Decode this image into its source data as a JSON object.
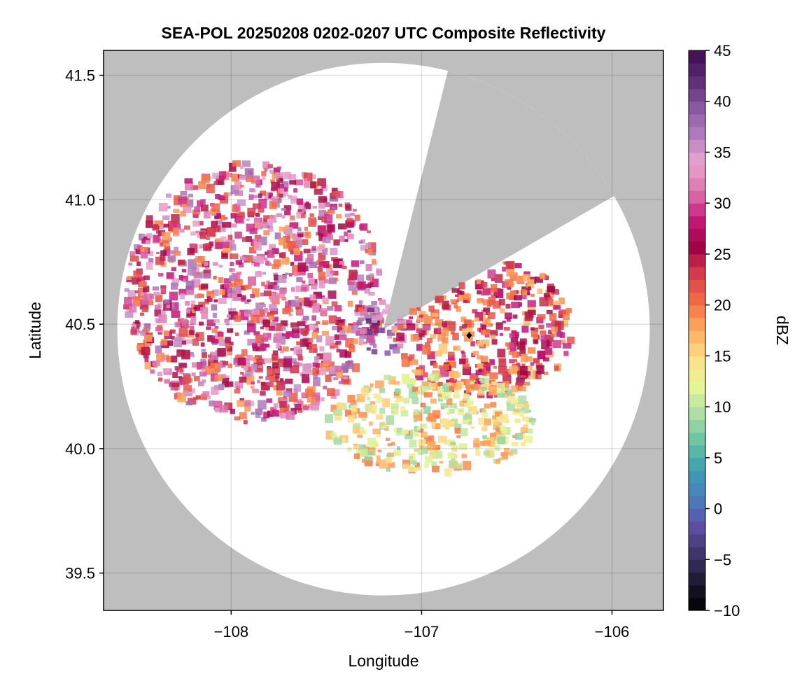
{
  "chart_data": {
    "type": "heatmap",
    "subtype": "radar-composite-reflectivity",
    "title": "SEA-POL 20250208 0202-0207 UTC Composite Reflectivity",
    "xlabel": "Longitude",
    "ylabel": "Latitude",
    "xlim": [
      -108.67,
      -105.73
    ],
    "ylim": [
      39.35,
      41.6
    ],
    "xticks": [
      -108,
      -107,
      -106
    ],
    "xtick_labels": [
      "−108",
      "−107",
      "−106"
    ],
    "yticks": [
      39.5,
      40.0,
      40.5,
      41.0,
      41.5
    ],
    "ytick_labels": [
      "39.5",
      "40.0",
      "40.5",
      "41.0",
      "41.5"
    ],
    "grid": true,
    "radar": {
      "center_lon": -107.2,
      "center_lat": 40.48,
      "range_lat_deg": 1.07,
      "blocked_sectors": [
        {
          "azimuth_from_deg": 14,
          "azimuth_to_deg": 60
        }
      ],
      "marker": {
        "lon": -106.75,
        "lat": 40.455,
        "shape": "diamond"
      }
    },
    "echo_regions": [
      {
        "name": "west-northwest band",
        "lon": [
          -108.55,
          -107.2
        ],
        "lat": [
          40.1,
          41.15
        ],
        "dbz_range": [
          18,
          38
        ]
      },
      {
        "name": "near-radar core",
        "lon": [
          -107.35,
          -107.05
        ],
        "lat": [
          40.38,
          40.58
        ],
        "dbz_range": [
          30,
          43
        ]
      },
      {
        "name": "east sector",
        "lon": [
          -107.15,
          -106.2
        ],
        "lat": [
          40.2,
          40.78
        ],
        "dbz_range": [
          16,
          30
        ]
      },
      {
        "name": "south weak echoes",
        "lon": [
          -107.5,
          -106.4
        ],
        "lat": [
          39.9,
          40.3
        ],
        "dbz_range": [
          8,
          20
        ]
      }
    ],
    "colorbar": {
      "label": "dBZ",
      "min": -10,
      "max": 45,
      "ticks": [
        -10,
        -5,
        0,
        5,
        10,
        15,
        20,
        25,
        30,
        35,
        40,
        45
      ],
      "tick_labels": [
        "−10",
        "−5",
        "0",
        "5",
        "10",
        "15",
        "20",
        "25",
        "30",
        "35",
        "40",
        "45"
      ],
      "colormap": "spectral-extended",
      "colors": [
        "#000000",
        "#1c1930",
        "#3e3467",
        "#5e4fa2",
        "#4b7cbc",
        "#3d9db1",
        "#66c2a5",
        "#abdda4",
        "#e6f598",
        "#fee08b",
        "#fdae61",
        "#f46d43",
        "#d53e4f",
        "#9e0142",
        "#c51b7d",
        "#de77ae",
        "#e8a5cf",
        "#b17cbc",
        "#8855a2",
        "#5c2a73",
        "#3d0c4f"
      ]
    },
    "background_color": "#bebebe"
  }
}
